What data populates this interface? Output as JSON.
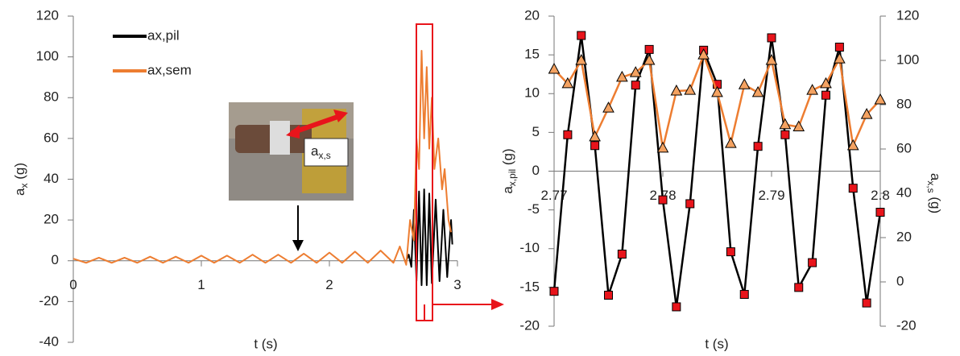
{
  "chart_data": [
    {
      "type": "line",
      "ylabel": [
        "a",
        "x",
        " (g)"
      ],
      "xlabel": "t (s)",
      "annotation": [
        "a",
        "x,s"
      ],
      "xlim": [
        0,
        3
      ],
      "xticks": [
        0,
        1,
        2,
        3
      ],
      "ylim": [
        -40,
        120
      ],
      "yticks": [
        -40,
        -20,
        0,
        20,
        40,
        60,
        80,
        100,
        120
      ],
      "grid": false,
      "legend": "upper left",
      "series": [
        {
          "name": "ax,pil",
          "color": "#000000",
          "x": [
            2.6,
            2.62,
            2.64,
            2.66,
            2.68,
            2.7,
            2.72,
            2.74,
            2.76,
            2.78,
            2.8,
            2.83,
            2.86,
            2.89,
            2.92,
            2.95,
            2.96
          ],
          "values": [
            0,
            3,
            -3,
            25,
            -10,
            34,
            -12,
            35,
            -12,
            33,
            -11,
            30,
            -10,
            25,
            -8,
            20,
            8
          ]
        },
        {
          "name": "ax,sem",
          "color": "#ed7d31",
          "x": [
            0,
            0.1,
            0.2,
            0.3,
            0.4,
            0.5,
            0.6,
            0.7,
            0.8,
            0.9,
            1,
            1.1,
            1.2,
            1.3,
            1.4,
            1.5,
            1.6,
            1.7,
            1.8,
            1.9,
            2,
            2.1,
            2.2,
            2.3,
            2.4,
            2.5,
            2.55,
            2.6,
            2.63,
            2.66,
            2.68,
            2.7,
            2.72,
            2.74,
            2.76,
            2.78,
            2.8,
            2.82,
            2.85,
            2.88,
            2.9,
            2.93,
            2.95
          ],
          "values": [
            1,
            -1,
            1.5,
            -1,
            1.5,
            -1,
            2,
            -1,
            2,
            -1,
            2.5,
            -1,
            2.5,
            -1,
            3,
            -1,
            3,
            -1,
            3.5,
            -1,
            4,
            -1,
            4.5,
            -1,
            5,
            -1,
            7,
            -2,
            20,
            10,
            60,
            45,
            103,
            60,
            95,
            55,
            80,
            45,
            60,
            35,
            45,
            20,
            14
          ]
        }
      ]
    },
    {
      "type": "line",
      "ylabel": [
        "a",
        "x,pil",
        " (g)"
      ],
      "y2label": [
        "a",
        "x,s",
        " (g)"
      ],
      "xlabel": "t (s)",
      "xlim": [
        2.77,
        2.8
      ],
      "xticks": [
        2.77,
        2.78,
        2.79,
        2.8
      ],
      "ylim": [
        -20,
        20
      ],
      "yticks": [
        -20,
        -15,
        -10,
        -5,
        0,
        5,
        10,
        15,
        20
      ],
      "y2lim": [
        -20,
        120
      ],
      "y2ticks": [
        -20,
        0,
        20,
        40,
        60,
        80,
        100,
        120
      ],
      "grid": false,
      "x": [
        2.77,
        2.77125,
        2.7725,
        2.77375,
        2.775,
        2.77625,
        2.7775,
        2.77875,
        2.78,
        2.78125,
        2.7825,
        2.78375,
        2.785,
        2.78625,
        2.7875,
        2.78875,
        2.79,
        2.79125,
        2.7925,
        2.79375,
        2.795,
        2.79625,
        2.7975,
        2.79875,
        2.8
      ],
      "series": [
        {
          "name": "ax,pil",
          "color": "#000000",
          "marker": "square",
          "marker_color": "#e8141b",
          "values": [
            -15.5,
            4.7,
            17.5,
            3.3,
            -16,
            -10.7,
            11.1,
            15.7,
            -3.7,
            -17.5,
            -4.2,
            15.6,
            11.2,
            -10.4,
            -15.9,
            3.2,
            17.2,
            4.7,
            -15,
            -11.8,
            9.8,
            16,
            -2.2,
            -17,
            -5.3
          ]
        },
        {
          "name": "ax,sem",
          "color": "#ed7d31",
          "marker": "triangle",
          "marker_color": "#f4a261",
          "axis": "y2",
          "values": [
            96,
            89.5,
            100,
            65.5,
            78.5,
            92.4,
            94.5,
            100,
            60.4,
            86.2,
            86.5,
            102.5,
            85.5,
            62.5,
            89,
            85.5,
            100,
            71,
            70,
            86.5,
            89.5,
            100.7,
            61.5,
            75.6,
            82.2
          ]
        }
      ]
    }
  ]
}
